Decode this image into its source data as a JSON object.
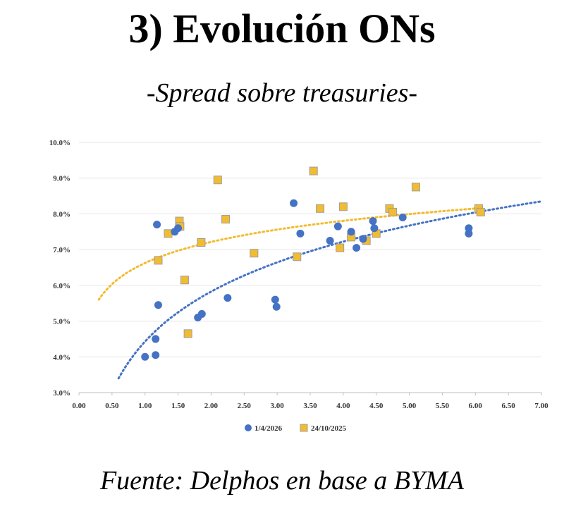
{
  "header": {
    "title": "3)  Evolución ONs",
    "subtitle": "-Spread sobre treasuries-"
  },
  "footer": {
    "source": "Fuente:  Delphos en base a BYMA"
  },
  "colors": {
    "series1": "#4472C4",
    "series2": "#F2BC30",
    "series2_edge": "#9E9E9E",
    "grid": "#E6E6E6",
    "axis": "#BFBFBF"
  },
  "chart_data": {
    "type": "scatter",
    "title": "",
    "xlabel": "",
    "ylabel": "",
    "xlim": [
      0,
      7
    ],
    "ylim": [
      3,
      10
    ],
    "x_ticks": [
      "0.00",
      "0.50",
      "1.00",
      "1.50",
      "2.00",
      "2.50",
      "3.00",
      "3.50",
      "4.00",
      "4.50",
      "5.00",
      "5.50",
      "6.00",
      "6.50",
      "7.00"
    ],
    "y_ticks": [
      "3.0%",
      "4.0%",
      "5.0%",
      "6.0%",
      "7.0%",
      "8.0%",
      "9.0%",
      "10.0%"
    ],
    "grid": "horizontal",
    "legend_position": "bottom",
    "series": [
      {
        "name": "1/4/2026",
        "marker": "circle",
        "points": [
          [
            1.0,
            4.0
          ],
          [
            1.16,
            4.05
          ],
          [
            1.16,
            4.5
          ],
          [
            1.2,
            5.45
          ],
          [
            1.18,
            7.7
          ],
          [
            1.45,
            7.5
          ],
          [
            1.5,
            7.6
          ],
          [
            1.8,
            5.1
          ],
          [
            1.86,
            5.2
          ],
          [
            2.25,
            5.65
          ],
          [
            2.97,
            5.6
          ],
          [
            2.99,
            5.4
          ],
          [
            3.25,
            8.3
          ],
          [
            3.35,
            7.45
          ],
          [
            3.8,
            7.25
          ],
          [
            3.92,
            7.65
          ],
          [
            4.12,
            7.5
          ],
          [
            4.2,
            7.05
          ],
          [
            4.3,
            7.3
          ],
          [
            4.45,
            7.8
          ],
          [
            4.47,
            7.6
          ],
          [
            4.9,
            7.9
          ],
          [
            5.9,
            7.6
          ],
          [
            5.9,
            7.45
          ]
        ],
        "trendline": {
          "type": "logarithmic",
          "x_range": [
            0.6,
            7.0
          ],
          "y_range": [
            3.4,
            8.35
          ]
        }
      },
      {
        "name": "24/10/2025",
        "marker": "square",
        "points": [
          [
            1.2,
            6.7
          ],
          [
            1.35,
            7.45
          ],
          [
            1.52,
            7.8
          ],
          [
            1.53,
            7.65
          ],
          [
            1.6,
            6.15
          ],
          [
            1.65,
            4.65
          ],
          [
            1.85,
            7.2
          ],
          [
            2.1,
            8.95
          ],
          [
            2.22,
            7.85
          ],
          [
            2.65,
            6.9
          ],
          [
            3.3,
            6.8
          ],
          [
            3.55,
            9.2
          ],
          [
            3.65,
            8.15
          ],
          [
            3.95,
            7.05
          ],
          [
            4.0,
            8.2
          ],
          [
            4.12,
            7.35
          ],
          [
            4.35,
            7.25
          ],
          [
            4.5,
            7.45
          ],
          [
            4.7,
            8.15
          ],
          [
            4.75,
            8.05
          ],
          [
            5.1,
            8.75
          ],
          [
            6.05,
            8.15
          ],
          [
            6.08,
            8.05
          ]
        ],
        "trendline": {
          "type": "logarithmic",
          "x_range": [
            0.3,
            6.0
          ],
          "y_range": [
            5.6,
            8.15
          ]
        }
      }
    ]
  }
}
